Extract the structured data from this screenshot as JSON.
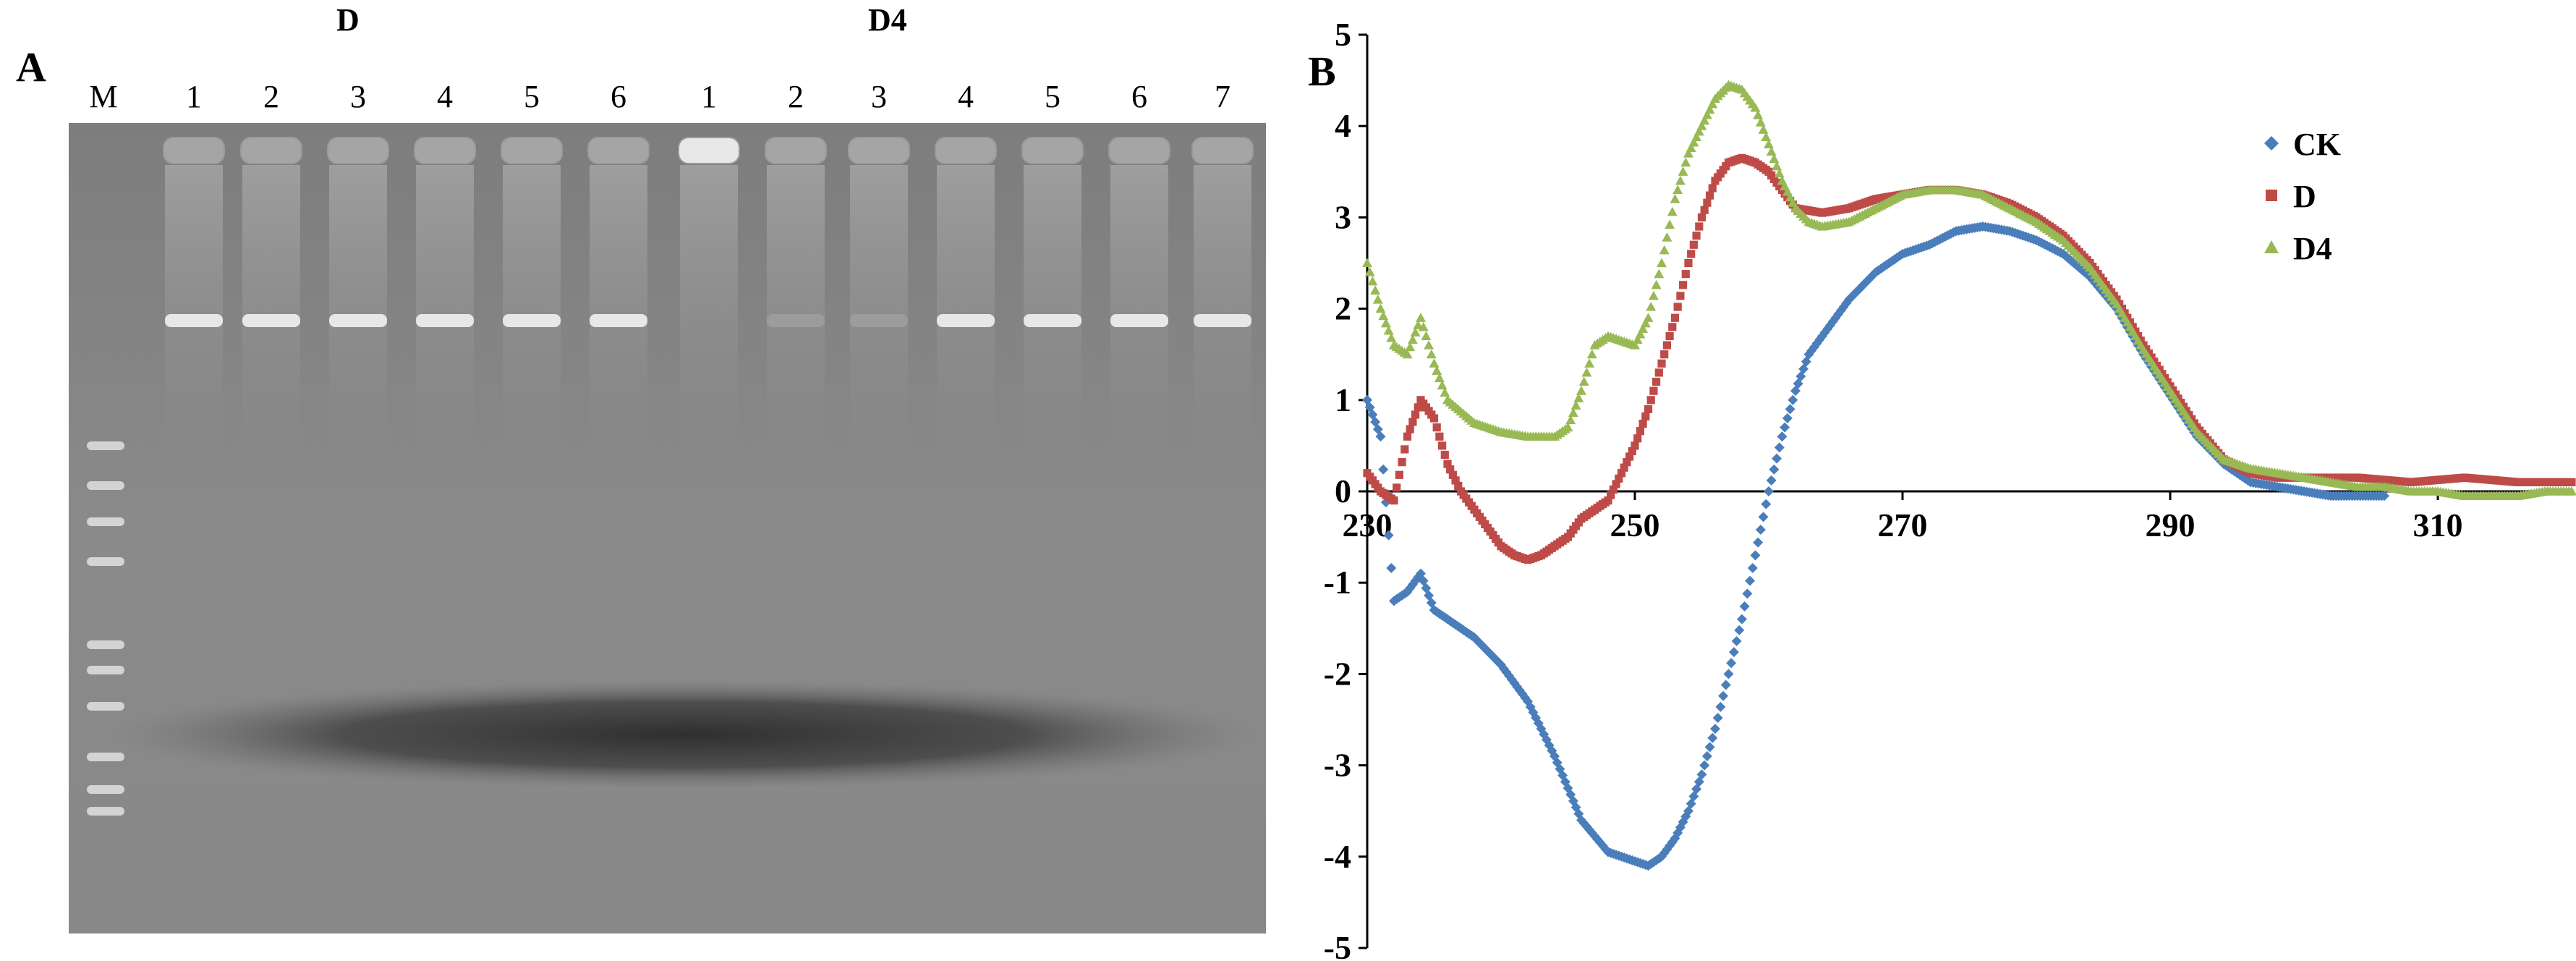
{
  "panel_a": {
    "label": "A",
    "groups": [
      {
        "name": "D",
        "lanes": [
          "1",
          "2",
          "3",
          "4",
          "5",
          "6"
        ]
      },
      {
        "name": "D4",
        "lanes": [
          "1",
          "2",
          "3",
          "4",
          "5",
          "6",
          "7"
        ]
      }
    ],
    "marker_label": "M"
  },
  "panel_b": {
    "label": "B"
  },
  "chart_data": {
    "type": "scatter",
    "title": "",
    "xlabel": "",
    "ylabel": "",
    "xlim": [
      230,
      320
    ],
    "ylim": [
      -5,
      5
    ],
    "x_ticks": [
      230,
      250,
      270,
      290,
      310
    ],
    "y_ticks": [
      5,
      4,
      3,
      2,
      1,
      0,
      -1,
      -2,
      -3,
      -4,
      -5
    ],
    "legend_position": "top-right",
    "grid": false,
    "series": [
      {
        "name": "CK",
        "color": "#4a7ebb",
        "marker": "diamond",
        "points": [
          [
            230,
            1.0
          ],
          [
            231,
            0.6
          ],
          [
            232,
            -1.2
          ],
          [
            233,
            -1.1
          ],
          [
            234,
            -0.9
          ],
          [
            235,
            -1.3
          ],
          [
            238,
            -1.6
          ],
          [
            240,
            -1.9
          ],
          [
            242,
            -2.3
          ],
          [
            244,
            -2.9
          ],
          [
            246,
            -3.6
          ],
          [
            248,
            -3.95
          ],
          [
            250,
            -4.05
          ],
          [
            251,
            -4.1
          ],
          [
            252,
            -4.0
          ],
          [
            253,
            -3.8
          ],
          [
            254,
            -3.5
          ],
          [
            255,
            -3.1
          ],
          [
            256,
            -2.6
          ],
          [
            257,
            -2.0
          ],
          [
            258,
            -1.4
          ],
          [
            259,
            -0.7
          ],
          [
            260,
            0.0
          ],
          [
            261,
            0.6
          ],
          [
            262,
            1.1
          ],
          [
            263,
            1.5
          ],
          [
            264,
            1.7
          ],
          [
            265,
            1.9
          ],
          [
            266,
            2.1
          ],
          [
            268,
            2.4
          ],
          [
            270,
            2.6
          ],
          [
            272,
            2.7
          ],
          [
            274,
            2.85
          ],
          [
            276,
            2.9
          ],
          [
            278,
            2.85
          ],
          [
            280,
            2.75
          ],
          [
            282,
            2.6
          ],
          [
            284,
            2.35
          ],
          [
            286,
            2.0
          ],
          [
            288,
            1.5
          ],
          [
            290,
            1.05
          ],
          [
            292,
            0.6
          ],
          [
            294,
            0.3
          ],
          [
            296,
            0.1
          ],
          [
            298,
            0.05
          ],
          [
            300,
            0.0
          ],
          [
            302,
            -0.05
          ],
          [
            304,
            -0.05
          ],
          [
            306,
            -0.05
          ]
        ]
      },
      {
        "name": "D",
        "color": "#be4b48",
        "marker": "square",
        "points": [
          [
            230,
            0.2
          ],
          [
            231,
            0.0
          ],
          [
            232,
            -0.1
          ],
          [
            233,
            0.6
          ],
          [
            234,
            1.0
          ],
          [
            235,
            0.8
          ],
          [
            236,
            0.3
          ],
          [
            237,
            0.0
          ],
          [
            238,
            -0.2
          ],
          [
            239,
            -0.4
          ],
          [
            240,
            -0.6
          ],
          [
            241,
            -0.7
          ],
          [
            242,
            -0.75
          ],
          [
            243,
            -0.7
          ],
          [
            244,
            -0.6
          ],
          [
            245,
            -0.5
          ],
          [
            246,
            -0.3
          ],
          [
            248,
            -0.1
          ],
          [
            249,
            0.2
          ],
          [
            250,
            0.5
          ],
          [
            251,
            0.9
          ],
          [
            252,
            1.4
          ],
          [
            253,
            1.9
          ],
          [
            254,
            2.5
          ],
          [
            255,
            3.0
          ],
          [
            256,
            3.4
          ],
          [
            257,
            3.6
          ],
          [
            258,
            3.65
          ],
          [
            259,
            3.6
          ],
          [
            260,
            3.5
          ],
          [
            261,
            3.3
          ],
          [
            262,
            3.1
          ],
          [
            264,
            3.05
          ],
          [
            266,
            3.1
          ],
          [
            268,
            3.2
          ],
          [
            270,
            3.25
          ],
          [
            272,
            3.3
          ],
          [
            274,
            3.3
          ],
          [
            276,
            3.25
          ],
          [
            278,
            3.15
          ],
          [
            280,
            3.0
          ],
          [
            282,
            2.8
          ],
          [
            284,
            2.5
          ],
          [
            286,
            2.1
          ],
          [
            288,
            1.6
          ],
          [
            290,
            1.15
          ],
          [
            292,
            0.7
          ],
          [
            294,
            0.35
          ],
          [
            296,
            0.2
          ],
          [
            298,
            0.15
          ],
          [
            300,
            0.15
          ],
          [
            304,
            0.15
          ],
          [
            308,
            0.1
          ],
          [
            312,
            0.15
          ],
          [
            316,
            0.1
          ],
          [
            320,
            0.1
          ]
        ]
      },
      {
        "name": "D4",
        "color": "#98b954",
        "marker": "triangle",
        "points": [
          [
            230,
            2.5
          ],
          [
            231,
            2.0
          ],
          [
            232,
            1.6
          ],
          [
            233,
            1.5
          ],
          [
            234,
            1.9
          ],
          [
            235,
            1.4
          ],
          [
            236,
            1.0
          ],
          [
            238,
            0.75
          ],
          [
            240,
            0.65
          ],
          [
            242,
            0.6
          ],
          [
            244,
            0.6
          ],
          [
            245,
            0.7
          ],
          [
            246,
            1.1
          ],
          [
            247,
            1.6
          ],
          [
            248,
            1.7
          ],
          [
            249,
            1.65
          ],
          [
            250,
            1.6
          ],
          [
            251,
            1.9
          ],
          [
            252,
            2.5
          ],
          [
            253,
            3.2
          ],
          [
            254,
            3.7
          ],
          [
            255,
            4.0
          ],
          [
            256,
            4.3
          ],
          [
            257,
            4.45
          ],
          [
            258,
            4.4
          ],
          [
            259,
            4.2
          ],
          [
            260,
            3.8
          ],
          [
            261,
            3.4
          ],
          [
            262,
            3.1
          ],
          [
            263,
            2.95
          ],
          [
            264,
            2.9
          ],
          [
            266,
            2.95
          ],
          [
            268,
            3.1
          ],
          [
            270,
            3.25
          ],
          [
            272,
            3.3
          ],
          [
            274,
            3.3
          ],
          [
            276,
            3.25
          ],
          [
            278,
            3.1
          ],
          [
            280,
            2.95
          ],
          [
            282,
            2.75
          ],
          [
            284,
            2.45
          ],
          [
            286,
            2.05
          ],
          [
            288,
            1.55
          ],
          [
            290,
            1.1
          ],
          [
            292,
            0.65
          ],
          [
            294,
            0.35
          ],
          [
            296,
            0.25
          ],
          [
            298,
            0.2
          ],
          [
            300,
            0.15
          ],
          [
            302,
            0.1
          ],
          [
            304,
            0.05
          ],
          [
            306,
            0.05
          ],
          [
            308,
            0.0
          ],
          [
            310,
            0.0
          ],
          [
            312,
            -0.05
          ],
          [
            314,
            -0.05
          ],
          [
            316,
            -0.05
          ],
          [
            318,
            0.0
          ],
          [
            320,
            0.0
          ]
        ]
      }
    ]
  }
}
